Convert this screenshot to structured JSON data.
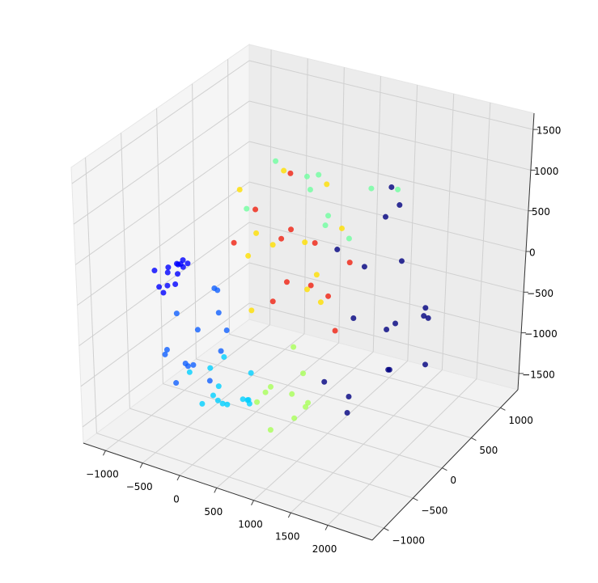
{
  "chart_data": {
    "type": "scatter3d",
    "xlim": [
      -1300,
      2600
    ],
    "ylim": [
      -1200,
      1300
    ],
    "zlim": [
      -1700,
      1700
    ],
    "xticks": [
      {
        "value": -1000,
        "label": "−1000"
      },
      {
        "value": -500,
        "label": "−500"
      },
      0,
      500,
      1000,
      1500,
      2000
    ],
    "yticks": [
      {
        "value": -1000,
        "label": "−1000"
      },
      {
        "value": -500,
        "label": "−500"
      },
      0,
      500,
      1000
    ],
    "zticks": [
      {
        "value": -1500,
        "label": "−1500"
      },
      {
        "value": -1000,
        "label": "−1000"
      },
      {
        "value": -500,
        "label": "−500"
      },
      0,
      500,
      1000,
      1500
    ],
    "grid": true,
    "series": [
      {
        "color": "#1060ff",
        "x": [
          -900,
          -800,
          -700,
          -600,
          -850,
          -500,
          -750,
          -650,
          -400,
          -950,
          -550,
          -300,
          -700,
          -800
        ],
        "y": [
          -200,
          0,
          -300,
          100,
          -100,
          -400,
          200,
          -500,
          0,
          -300,
          -100,
          -200,
          -600,
          300
        ],
        "z": [
          -600,
          -900,
          -1100,
          -700,
          -1300,
          -1000,
          -500,
          -1200,
          -800,
          -1000,
          -1400,
          -900,
          -800,
          -600
        ]
      },
      {
        "color": "#00d0ff",
        "x": [
          0,
          200,
          400,
          600,
          100,
          300,
          500,
          -100,
          700,
          250,
          450,
          150,
          350,
          550
        ],
        "y": [
          -700,
          -800,
          -900,
          -800,
          -600,
          -1000,
          -700,
          -900,
          -900,
          -800,
          -1100,
          -1000,
          -600,
          -700
        ],
        "z": [
          -700,
          -800,
          -900,
          -850,
          -600,
          -750,
          -950,
          -650,
          -800,
          -1000,
          -700,
          -900,
          -1050,
          -600
        ]
      },
      {
        "color": "#a8ff58",
        "x": [
          900,
          1100,
          1300,
          1000,
          1200,
          1400,
          800,
          1150,
          1250,
          950
        ],
        "y": [
          -800,
          -700,
          -900,
          -1000,
          -600,
          -800,
          -900,
          -1100,
          -700,
          -500
        ],
        "z": [
          -600,
          -700,
          -800,
          -500,
          -900,
          -650,
          -750,
          -850,
          -400,
          -300
        ]
      },
      {
        "color": "#70ffa0",
        "x": [
          0,
          400,
          800,
          1200,
          200,
          600,
          1000,
          1300,
          -300,
          500
        ],
        "y": [
          300,
          500,
          200,
          400,
          600,
          100,
          300,
          700,
          200,
          500
        ],
        "z": [
          1200,
          1000,
          800,
          1100,
          700,
          1300,
          500,
          900,
          600,
          400
        ]
      },
      {
        "color": "#f02010",
        "x": [
          0,
          300,
          600,
          900,
          200,
          500,
          800,
          1100,
          -200,
          400,
          700,
          1000
        ],
        "y": [
          0,
          200,
          -200,
          100,
          300,
          -300,
          0,
          200,
          -100,
          400,
          -400,
          100
        ],
        "z": [
          800,
          500,
          200,
          -100,
          1100,
          0,
          600,
          300,
          400,
          -300,
          900,
          -500
        ]
      },
      {
        "color": "#ffe000",
        "x": [
          -300,
          100,
          400,
          700,
          1000,
          200,
          500,
          800,
          -100,
          600,
          300,
          900
        ],
        "y": [
          100,
          -100,
          300,
          0,
          -200,
          200,
          -300,
          100,
          0,
          400,
          -400,
          300
        ],
        "z": [
          900,
          600,
          300,
          0,
          400,
          1200,
          700,
          -200,
          200,
          1000,
          -100,
          600
        ]
      },
      {
        "color": "#000080",
        "x": [
          1100,
          1300,
          1500,
          1700,
          1900,
          2100,
          2300,
          1200,
          1400,
          1600,
          1800,
          2000,
          2200,
          1500,
          1700,
          1900,
          1300,
          2400
        ],
        "y": [
          0,
          200,
          -200,
          100,
          -100,
          300,
          0,
          -300,
          400,
          -400,
          200,
          -200,
          100,
          500,
          -500,
          0,
          600,
          -100
        ],
        "z": [
          600,
          300,
          0,
          -300,
          -600,
          -200,
          200,
          -800,
          800,
          -1000,
          500,
          -500,
          0,
          900,
          -700,
          -100,
          1000,
          -400
        ]
      },
      {
        "color": "#0000ff",
        "x": [
          -1200,
          -1150,
          -1180,
          -1120,
          -1210,
          -1160,
          -1100,
          -1190,
          -1140,
          -1170,
          -1130,
          -1220,
          -1080,
          -1160
        ],
        "y": [
          0,
          100,
          -150,
          50,
          200,
          -50,
          120,
          -200,
          80,
          -100,
          150,
          30,
          -20,
          250
        ],
        "z": [
          -300,
          -250,
          -380,
          -200,
          -320,
          -420,
          -280,
          -150,
          -350,
          -480,
          -220,
          -260,
          -400,
          -330
        ]
      }
    ]
  }
}
